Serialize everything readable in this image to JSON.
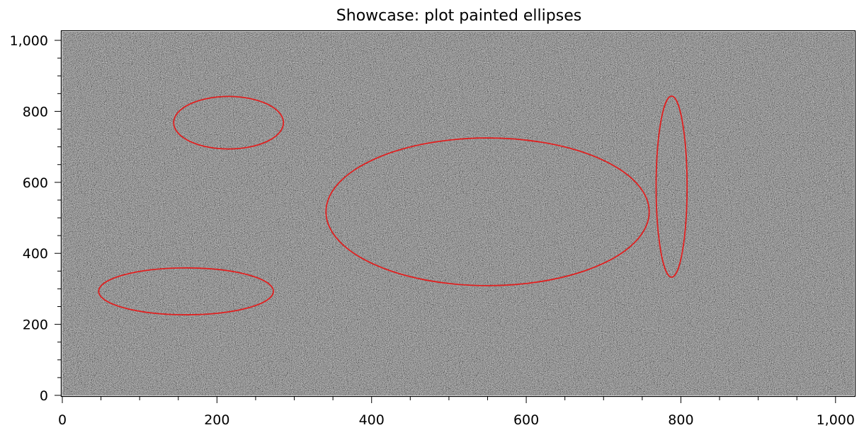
{
  "chart_data": {
    "type": "scatter",
    "title": "Showcase: plot painted ellipses",
    "xlabel": "",
    "ylabel": "",
    "xlim": [
      0,
      1024
    ],
    "ylim": [
      0,
      1024
    ],
    "x_ticks": [
      {
        "value": 0,
        "label": "0"
      },
      {
        "value": 200,
        "label": "200"
      },
      {
        "value": 400,
        "label": "400"
      },
      {
        "value": 600,
        "label": "600"
      },
      {
        "value": 800,
        "label": "800"
      },
      {
        "value": 1000,
        "label": "1,000"
      }
    ],
    "y_ticks": [
      {
        "value": 0,
        "label": "0"
      },
      {
        "value": 200,
        "label": "200"
      },
      {
        "value": 400,
        "label": "400"
      },
      {
        "value": 600,
        "label": "600"
      },
      {
        "value": 800,
        "label": "800"
      },
      {
        "value": 1000,
        "label": "1,000"
      }
    ],
    "minor_tick_step": 50,
    "background": "random grayscale noise image",
    "grid": false,
    "ellipse_color": "#e02020",
    "ellipses": [
      {
        "cx": 215,
        "cy": 768,
        "rx": 71,
        "ry": 74
      },
      {
        "cx": 160,
        "cy": 293,
        "rx": 113,
        "ry": 66
      },
      {
        "cx": 550,
        "cy": 517,
        "rx": 209,
        "ry": 208
      },
      {
        "cx": 788,
        "cy": 588,
        "rx": 20,
        "ry": 255
      }
    ]
  }
}
